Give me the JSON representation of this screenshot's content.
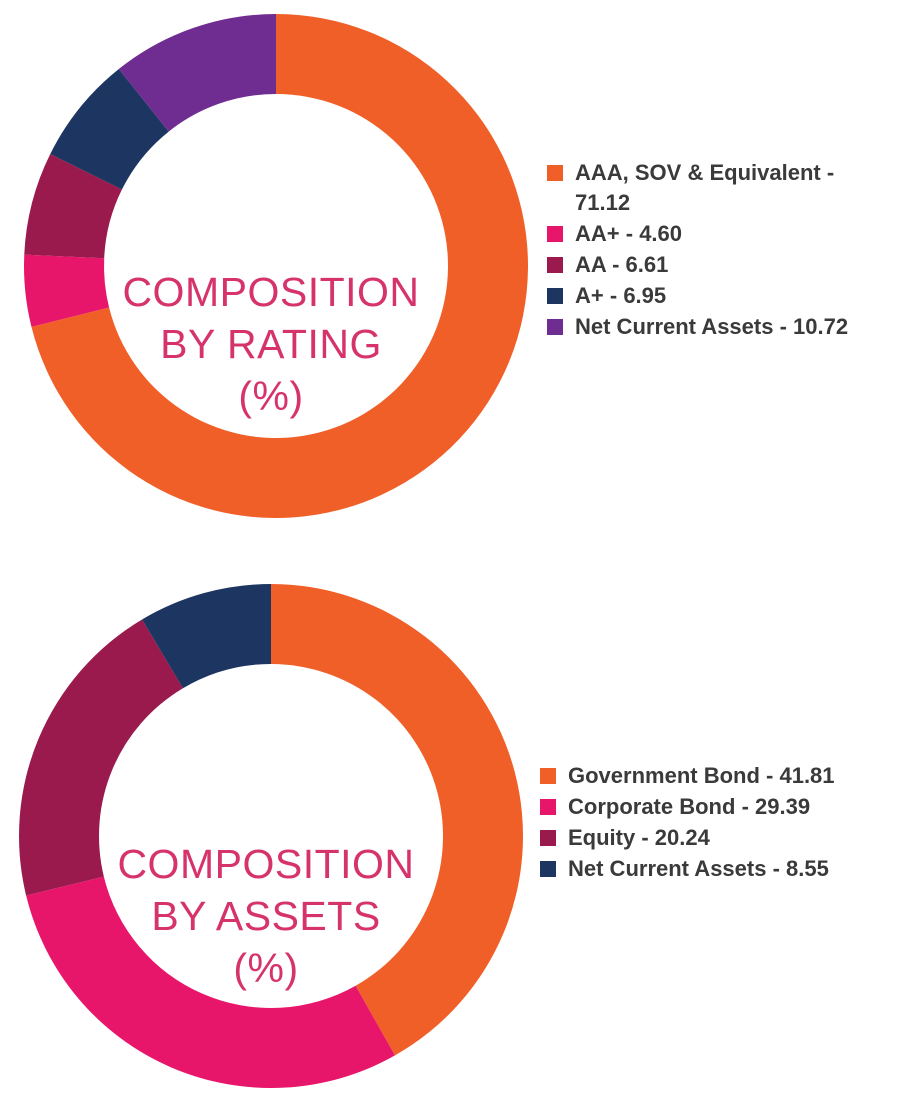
{
  "colors": {
    "orange": "#F15F28",
    "pink": "#E8166A",
    "maroon": "#9A1A4D",
    "navy": "#1D3661",
    "purple": "#6F2C91",
    "title": "#D6336C"
  },
  "chart_data": [
    {
      "type": "pie",
      "variant": "donut",
      "title_lines": [
        "COMPOSITION",
        "BY RATING",
        "(%)"
      ],
      "categories": [
        "AAA, SOV & Equivalent",
        "AA+",
        "AA",
        "A+",
        "Net Current Assets"
      ],
      "values": [
        71.12,
        4.6,
        6.61,
        6.95,
        10.72
      ],
      "value_labels": [
        "71.12",
        "4.60",
        "6.61",
        "6.95",
        "10.72"
      ],
      "colors": [
        "#F15F28",
        "#E8166A",
        "#9A1A4D",
        "#1D3661",
        "#6F2C91"
      ],
      "legend_position": "right"
    },
    {
      "type": "pie",
      "variant": "donut",
      "title_lines": [
        "COMPOSITION",
        "BY ASSETS",
        "(%)"
      ],
      "categories": [
        "Government Bond",
        "Corporate Bond",
        "Equity",
        "Net Current Assets"
      ],
      "values": [
        41.81,
        29.39,
        20.24,
        8.55
      ],
      "value_labels": [
        "41.81",
        "29.39",
        "20.24",
        "8.55"
      ],
      "colors": [
        "#F15F28",
        "#E8166A",
        "#9A1A4D",
        "#1D3661"
      ],
      "legend_position": "right"
    }
  ]
}
